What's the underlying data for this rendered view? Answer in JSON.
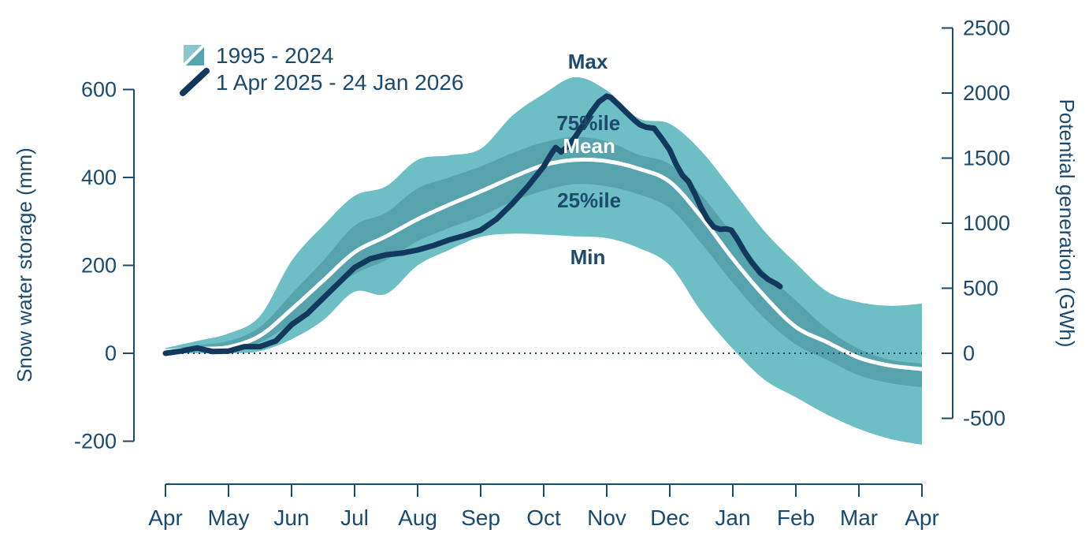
{
  "chart_data": {
    "type": "area",
    "title": "",
    "x_axis": {
      "tick_labels": [
        "Apr",
        "May",
        "Jun",
        "Jul",
        "Aug",
        "Sep",
        "Oct",
        "Nov",
        "Dec",
        "Jan",
        "Feb",
        "Mar",
        "Apr"
      ]
    },
    "y_left": {
      "label": "Snow water storage (mm)",
      "ticks": [
        600,
        400,
        200,
        0,
        -200
      ]
    },
    "y_right": {
      "label": "Potential generation (GWh)",
      "ticks": [
        2500,
        2000,
        1500,
        1000,
        500,
        0,
        -500
      ]
    },
    "legend": [
      {
        "label": "1995 - 2024",
        "swatch": "band"
      },
      {
        "label": "1 Apr 2025 - 24 Jan 2026",
        "swatch": "line"
      }
    ],
    "climatology_1995_2024": {
      "months": [
        0,
        0.5,
        1,
        1.5,
        2,
        2.5,
        3,
        3.5,
        4,
        4.5,
        5,
        5.5,
        6,
        6.5,
        7,
        7.5,
        8,
        8.5,
        9,
        9.5,
        10,
        10.5,
        11,
        11.5,
        12
      ],
      "max": [
        12,
        28,
        45,
        85,
        210,
        290,
        358,
        380,
        440,
        450,
        465,
        540,
        590,
        628,
        598,
        535,
        522,
        460,
        370,
        278,
        205,
        140,
        116,
        108,
        113
      ],
      "p75": [
        8,
        18,
        28,
        60,
        135,
        210,
        290,
        320,
        375,
        400,
        425,
        455,
        480,
        492,
        482,
        452,
        430,
        360,
        270,
        185,
        120,
        55,
        10,
        -15,
        -23
      ],
      "mean": [
        5,
        10,
        14,
        40,
        100,
        165,
        230,
        266,
        305,
        338,
        368,
        400,
        428,
        440,
        437,
        420,
        390,
        310,
        215,
        130,
        60,
        25,
        -10,
        -28,
        -36
      ],
      "p25": [
        2,
        5,
        8,
        25,
        70,
        130,
        180,
        212,
        255,
        285,
        312,
        345,
        370,
        385,
        380,
        362,
        330,
        250,
        160,
        80,
        20,
        -15,
        -50,
        -68,
        -77
      ],
      "min": [
        0,
        0,
        0,
        5,
        32,
        75,
        140,
        135,
        200,
        235,
        265,
        272,
        270,
        266,
        262,
        240,
        200,
        95,
        10,
        -60,
        -100,
        -140,
        -172,
        -195,
        -208
      ]
    },
    "current_season": {
      "name": "1 Apr 2025 - 24 Jan 2026",
      "points_month_mm": [
        [
          0,
          0
        ],
        [
          0.25,
          5
        ],
        [
          0.5,
          12
        ],
        [
          0.75,
          4
        ],
        [
          1,
          5
        ],
        [
          1.25,
          15
        ],
        [
          1.5,
          15
        ],
        [
          1.75,
          28
        ],
        [
          2,
          65
        ],
        [
          2.25,
          90
        ],
        [
          2.5,
          125
        ],
        [
          2.75,
          160
        ],
        [
          3,
          195
        ],
        [
          3.25,
          215
        ],
        [
          3.5,
          224
        ],
        [
          3.75,
          228
        ],
        [
          4,
          235
        ],
        [
          4.25,
          245
        ],
        [
          4.5,
          258
        ],
        [
          4.75,
          268
        ],
        [
          5,
          280
        ],
        [
          5.25,
          305
        ],
        [
          5.5,
          340
        ],
        [
          5.75,
          380
        ],
        [
          6,
          425
        ],
        [
          6.125,
          455
        ],
        [
          6.19,
          468
        ],
        [
          6.275,
          458
        ],
        [
          6.375,
          470
        ],
        [
          6.5,
          492
        ],
        [
          6.625,
          520
        ],
        [
          6.75,
          548
        ],
        [
          6.875,
          572
        ],
        [
          7,
          585
        ],
        [
          7.06,
          582
        ],
        [
          7.19,
          565
        ],
        [
          7.31,
          548
        ],
        [
          7.44,
          530
        ],
        [
          7.525,
          520
        ],
        [
          7.625,
          514
        ],
        [
          7.75,
          512
        ],
        [
          7.875,
          488
        ],
        [
          8,
          462
        ],
        [
          8.1,
          430
        ],
        [
          8.2,
          405
        ],
        [
          8.3,
          390
        ],
        [
          8.4,
          362
        ],
        [
          8.5,
          330
        ],
        [
          8.6,
          305
        ],
        [
          8.7,
          287
        ],
        [
          8.8,
          282
        ],
        [
          8.9,
          283
        ],
        [
          8.975,
          280
        ],
        [
          9.06,
          262
        ],
        [
          9.19,
          230
        ],
        [
          9.31,
          205
        ],
        [
          9.44,
          182
        ],
        [
          9.56,
          168
        ],
        [
          9.69,
          158
        ],
        [
          9.75,
          152
        ]
      ]
    },
    "annotations": [
      {
        "text": "Max",
        "month": 6.7,
        "mm": 664,
        "style": "dark"
      },
      {
        "text": "75%ile",
        "month": 6.71,
        "mm": 524,
        "style": "dark"
      },
      {
        "text": "Mean",
        "month": 6.72,
        "mm": 472,
        "style": "light"
      },
      {
        "text": "25%ile",
        "month": 6.72,
        "mm": 348,
        "style": "dark"
      },
      {
        "text": "Min",
        "month": 6.7,
        "mm": 219,
        "style": "dark"
      }
    ],
    "zero_reference_line": 0,
    "colors": {
      "band_outer": "#6dbec5",
      "band_inner": "#56a2ad",
      "legend_band_light": "#8ac6ce",
      "legend_band_dark": "#57a3ae",
      "mean_line": "#ffffff",
      "current_line": "#12395d",
      "text": "#1c4a6e",
      "background": "#ffffff"
    }
  }
}
